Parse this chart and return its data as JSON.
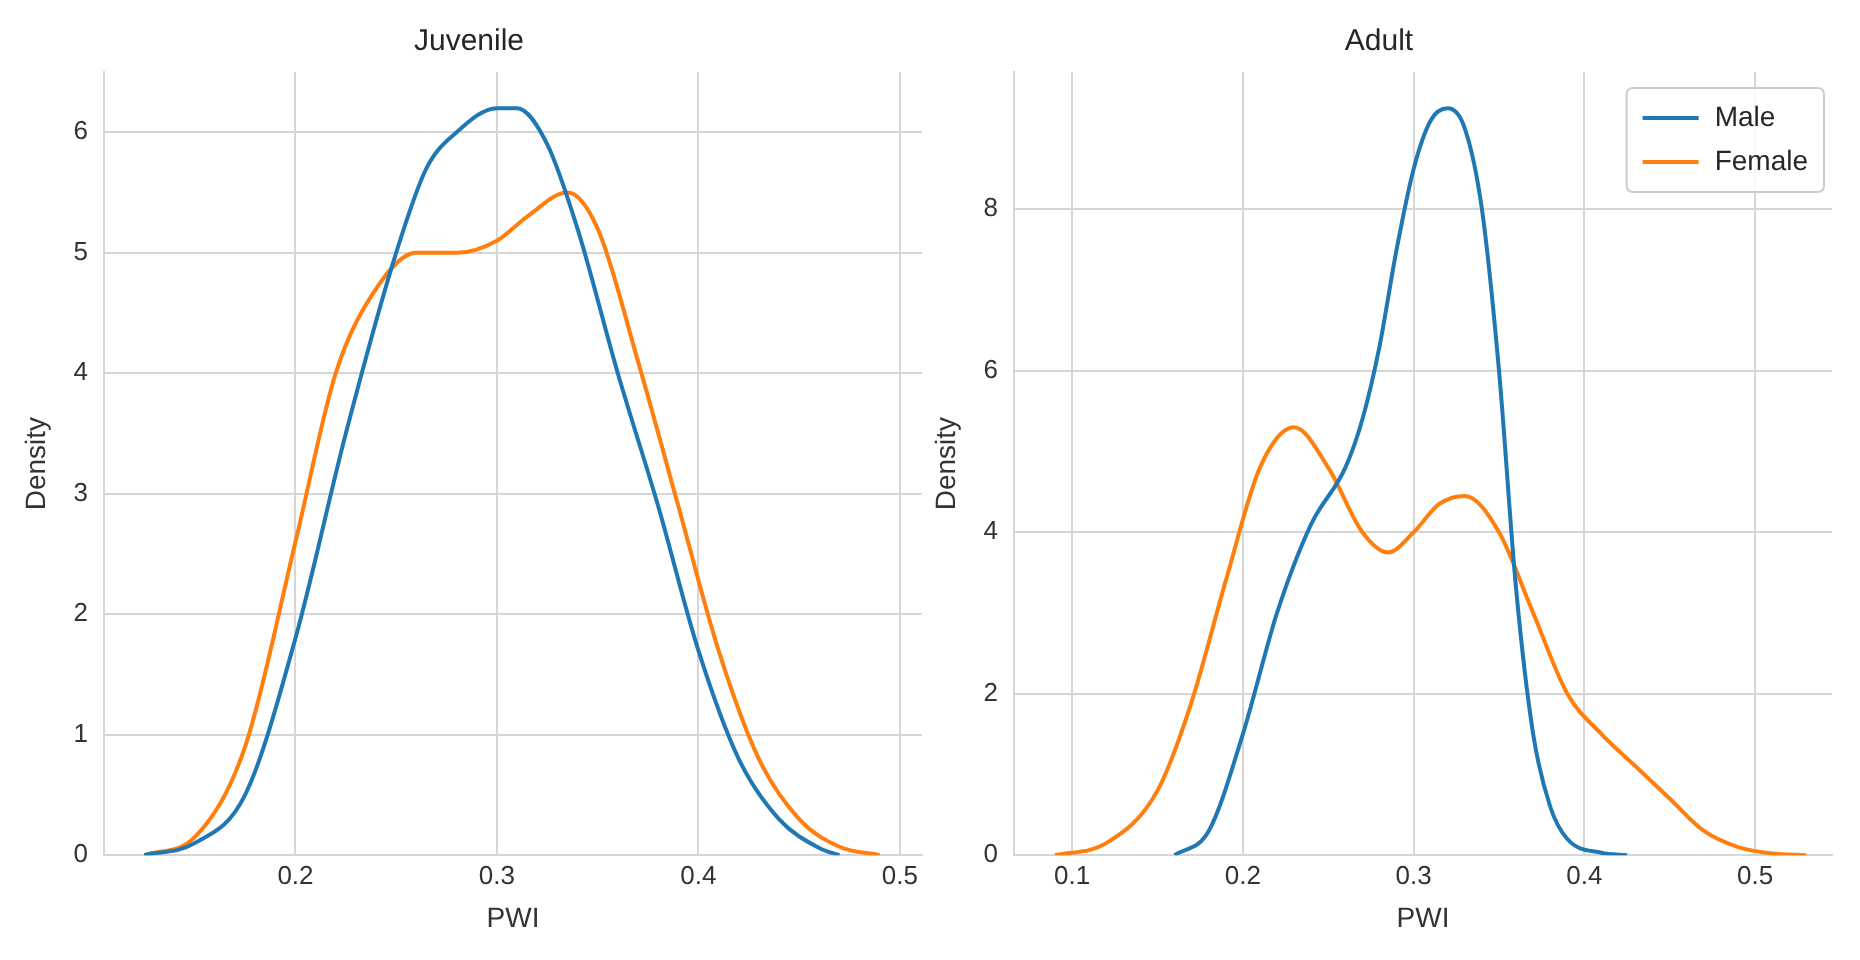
{
  "chart_data": [
    {
      "type": "line",
      "title": "Juvenile",
      "xlabel": "PWI",
      "ylabel": "Density",
      "xlim": [
        0.105,
        0.511
      ],
      "xticks": [
        0.2,
        0.3,
        0.4,
        0.5
      ],
      "ylim": [
        0,
        6.5
      ],
      "yticks": [
        0,
        1,
        2,
        3,
        4,
        5,
        6
      ],
      "grid": true,
      "legend": false,
      "marker": "none",
      "series": [
        {
          "color": "#1f77b4",
          "x": [
            0.125,
            0.15,
            0.175,
            0.2,
            0.225,
            0.25,
            0.265,
            0.28,
            0.3,
            0.31,
            0.325,
            0.34,
            0.36,
            0.38,
            0.4,
            0.42,
            0.44,
            0.46,
            0.47
          ],
          "values": [
            0,
            0.1,
            0.5,
            1.8,
            3.5,
            5.0,
            5.7,
            6.0,
            6.2,
            6.2,
            5.9,
            5.2,
            4.0,
            2.9,
            1.7,
            0.8,
            0.3,
            0.06,
            0
          ]
        },
        {
          "color": "#ff7f0e",
          "x": [
            0.125,
            0.15,
            0.175,
            0.2,
            0.22,
            0.24,
            0.26,
            0.28,
            0.3,
            0.315,
            0.335,
            0.35,
            0.37,
            0.39,
            0.41,
            0.43,
            0.45,
            0.47,
            0.49
          ],
          "values": [
            0,
            0.15,
            0.9,
            2.6,
            4.0,
            4.7,
            5.0,
            5.0,
            5.1,
            5.3,
            5.5,
            5.2,
            4.1,
            2.9,
            1.7,
            0.8,
            0.3,
            0.07,
            0
          ]
        }
      ]
    },
    {
      "type": "line",
      "title": "Adult",
      "xlabel": "PWI",
      "ylabel": "Density",
      "xlim": [
        0.066,
        0.545
      ],
      "xticks": [
        0.1,
        0.2,
        0.3,
        0.4,
        0.5
      ],
      "ylim": [
        0,
        9.7
      ],
      "yticks": [
        0,
        2,
        4,
        6,
        8
      ],
      "grid": true,
      "legend": "top right",
      "marker": "none",
      "series": [
        {
          "name": "Male",
          "color": "#1f77b4",
          "x": [
            0.16,
            0.18,
            0.2,
            0.22,
            0.24,
            0.26,
            0.27,
            0.28,
            0.29,
            0.3,
            0.31,
            0.32,
            0.33,
            0.34,
            0.35,
            0.36,
            0.37,
            0.38,
            0.39,
            0.41,
            0.425
          ],
          "values": [
            0,
            0.3,
            1.5,
            3.0,
            4.1,
            4.8,
            5.4,
            6.3,
            7.5,
            8.5,
            9.1,
            9.25,
            9.0,
            8.0,
            6.0,
            3.3,
            1.5,
            0.6,
            0.2,
            0.03,
            0
          ]
        },
        {
          "name": "Female",
          "color": "#ff7f0e",
          "x": [
            0.09,
            0.12,
            0.15,
            0.17,
            0.19,
            0.21,
            0.23,
            0.25,
            0.27,
            0.285,
            0.3,
            0.315,
            0.33,
            0.35,
            0.37,
            0.39,
            0.41,
            0.43,
            0.45,
            0.47,
            0.49,
            0.51,
            0.53
          ],
          "values": [
            0,
            0.15,
            0.8,
            1.9,
            3.4,
            4.8,
            5.3,
            4.8,
            4.0,
            3.75,
            4.0,
            4.35,
            4.45,
            4.0,
            3.0,
            2.0,
            1.5,
            1.1,
            0.7,
            0.3,
            0.1,
            0.02,
            0
          ]
        }
      ]
    }
  ]
}
